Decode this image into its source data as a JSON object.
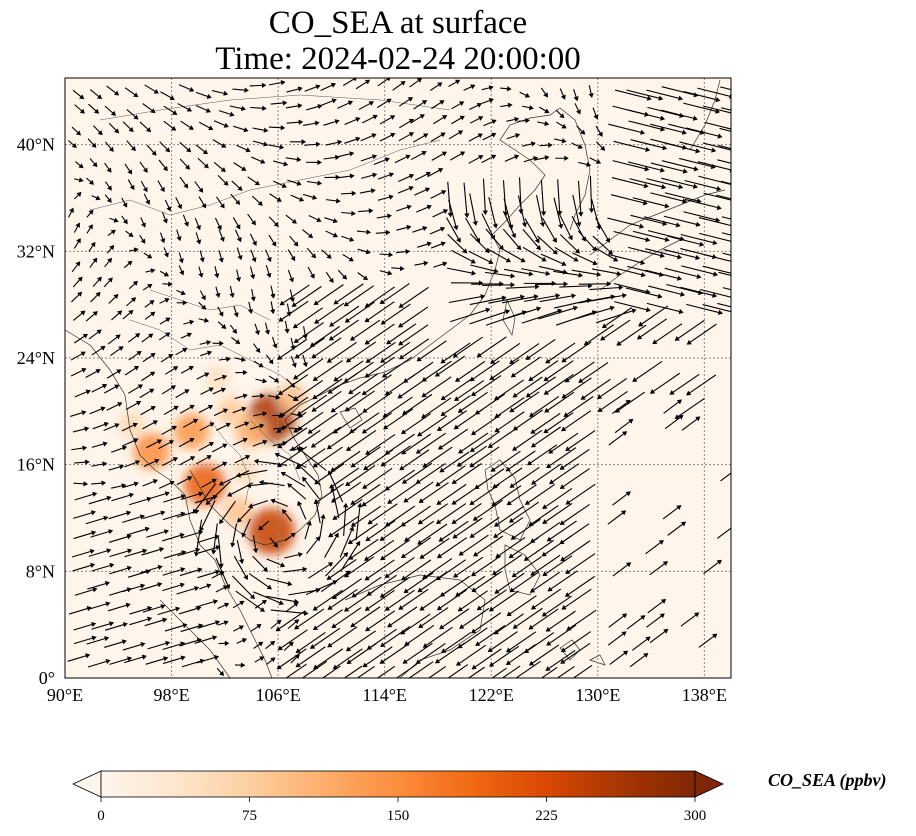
{
  "title": {
    "line1": "CO_SEA at surface",
    "line2": "Time: 2024-02-24 20:00:00"
  },
  "map": {
    "extent": {
      "lon": [
        90,
        140
      ],
      "lat": [
        0,
        45
      ]
    },
    "gridlines": true,
    "x_ticks": [
      {
        "value": 90,
        "label": "90°E"
      },
      {
        "value": 98,
        "label": "98°E"
      },
      {
        "value": 106,
        "label": "106°E"
      },
      {
        "value": 114,
        "label": "114°E"
      },
      {
        "value": 122,
        "label": "122°E"
      },
      {
        "value": 130,
        "label": "130°E"
      },
      {
        "value": 138,
        "label": "138°E"
      }
    ],
    "y_ticks": [
      {
        "value": 0,
        "label": "0°"
      },
      {
        "value": 8,
        "label": "8°N"
      },
      {
        "value": 16,
        "label": "16°N"
      },
      {
        "value": 24,
        "label": "24°N"
      },
      {
        "value": 32,
        "label": "32°N"
      },
      {
        "value": 40,
        "label": "40°N"
      }
    ],
    "background_color": "#fff5eb",
    "hotspots": [
      {
        "lon": 105.5,
        "lat": 19.5,
        "value": 260
      },
      {
        "lon": 104.0,
        "lat": 18.5,
        "value": 110
      },
      {
        "lon": 107.0,
        "lat": 21.0,
        "value": 90
      },
      {
        "lon": 102.5,
        "lat": 20.0,
        "value": 80
      },
      {
        "lon": 95.0,
        "lat": 19.0,
        "value": 60
      },
      {
        "lon": 96.5,
        "lat": 17.0,
        "value": 150
      },
      {
        "lon": 99.5,
        "lat": 18.5,
        "value": 140
      },
      {
        "lon": 100.5,
        "lat": 14.5,
        "value": 200
      },
      {
        "lon": 105.5,
        "lat": 11.0,
        "value": 240
      },
      {
        "lon": 103.0,
        "lat": 12.5,
        "value": 90
      },
      {
        "lon": 103.5,
        "lat": 15.5,
        "value": 60
      },
      {
        "lon": 101.5,
        "lat": 22.5,
        "value": 50
      }
    ]
  },
  "colorbar": {
    "min": 0,
    "max": 300,
    "ticks": [
      {
        "value": 0,
        "label": "0"
      },
      {
        "value": 75,
        "label": "75"
      },
      {
        "value": 150,
        "label": "150"
      },
      {
        "value": 225,
        "label": "225"
      },
      {
        "value": 300,
        "label": "300"
      }
    ],
    "colors": [
      "#fff5eb",
      "#fee6ce",
      "#fdd0a2",
      "#fdae6b",
      "#fd8d3c",
      "#f16913",
      "#d94801",
      "#a63603",
      "#7f2704"
    ],
    "label": "CO_SEA (ppbv)"
  }
}
